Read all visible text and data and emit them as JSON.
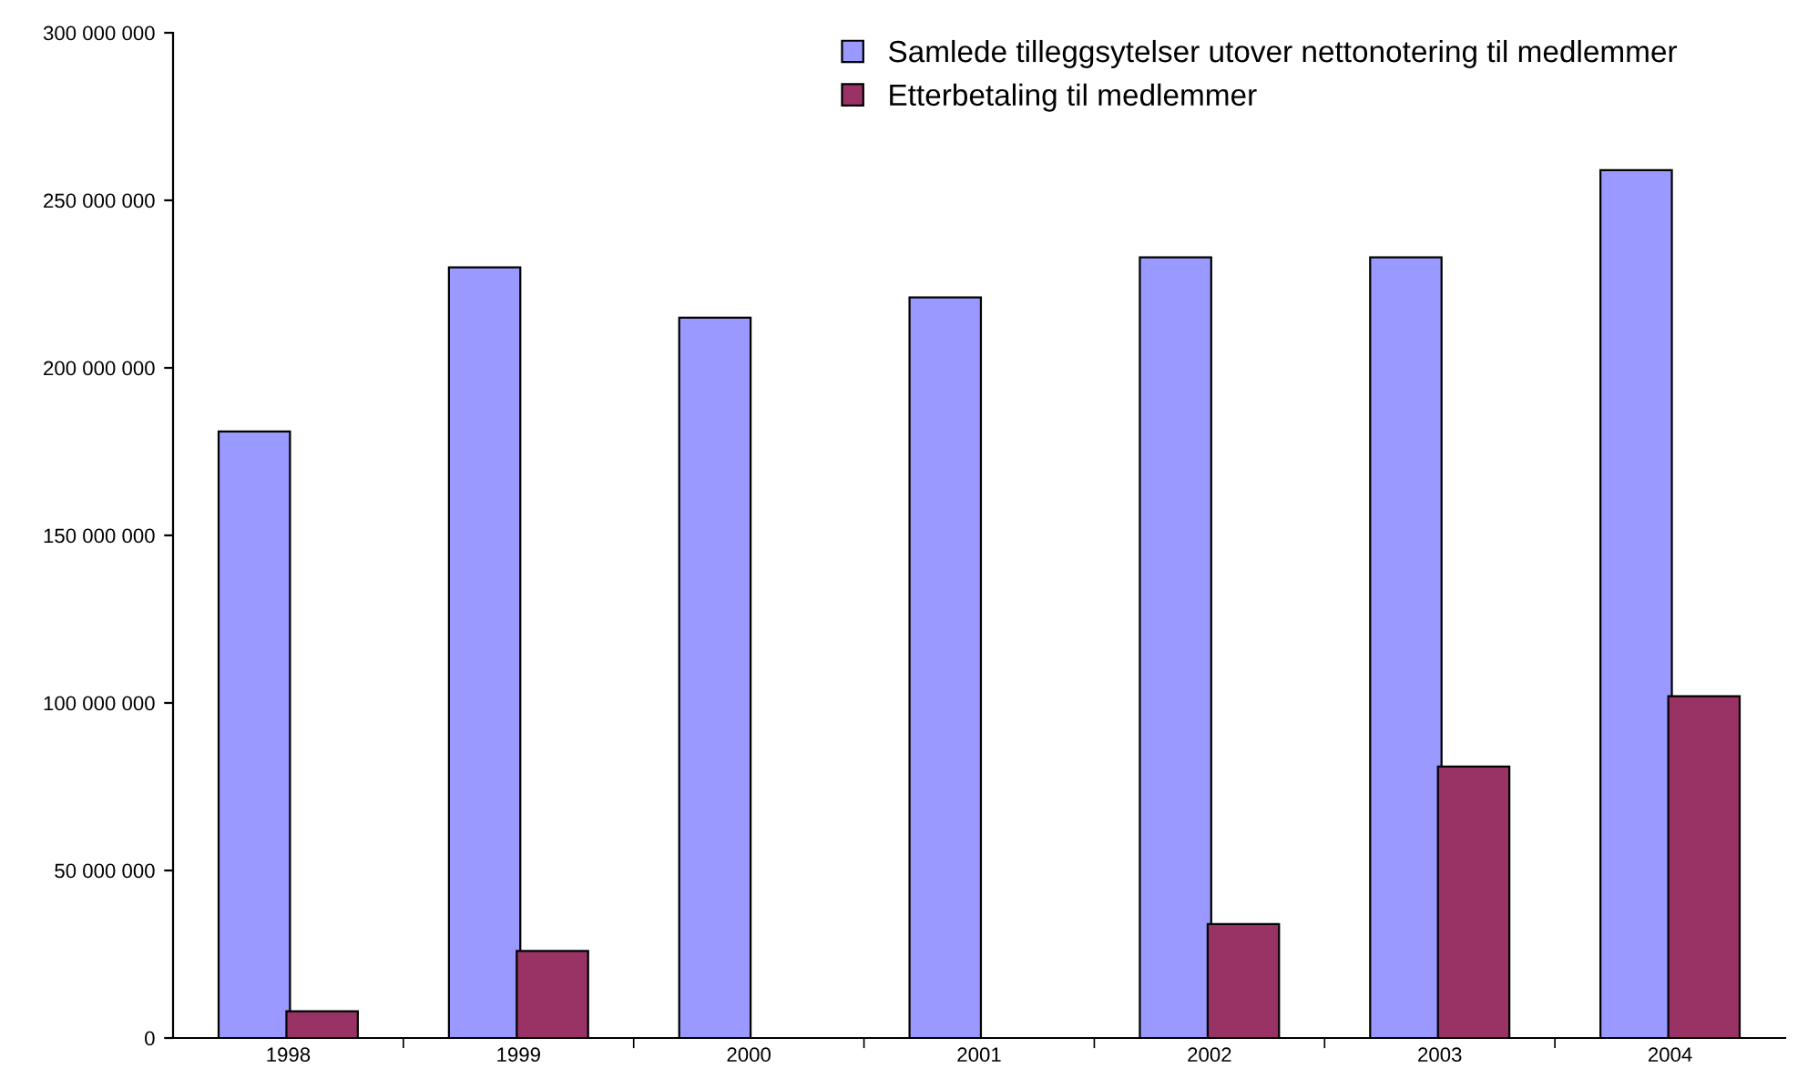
{
  "chart_data": {
    "type": "bar",
    "categories": [
      "1998",
      "1999",
      "2000",
      "2001",
      "2002",
      "2003",
      "2004"
    ],
    "series": [
      {
        "name": "Samlede tilleggsytelser utover nettonotering til medlemmer",
        "color": "#9999ff",
        "values": [
          181000000,
          230000000,
          215000000,
          221000000,
          233000000,
          233000000,
          259000000
        ]
      },
      {
        "name": "Etterbetaling til medlemmer",
        "color": "#993366",
        "values": [
          8000000,
          26000000,
          null,
          null,
          34000000,
          81000000,
          102000000
        ]
      }
    ],
    "ylim": [
      0,
      300000000
    ],
    "yticks": [
      {
        "value": 0,
        "label": "0"
      },
      {
        "value": 50000000,
        "label": "50 000 000"
      },
      {
        "value": 100000000,
        "label": "100 000 000"
      },
      {
        "value": 150000000,
        "label": "150 000 000"
      },
      {
        "value": 200000000,
        "label": "200 000 000"
      },
      {
        "value": 250000000,
        "label": "250 000 000"
      },
      {
        "value": 300000000,
        "label": "300 000 000"
      }
    ],
    "grid": false,
    "legend": "top right"
  }
}
